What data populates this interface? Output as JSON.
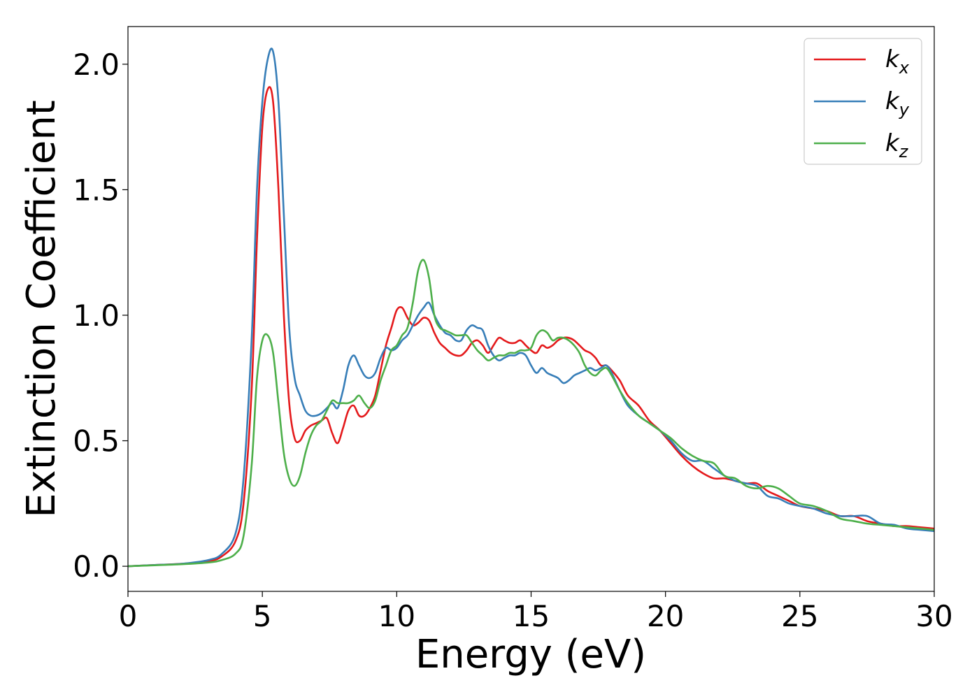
{
  "chart_data": {
    "type": "line",
    "xlabel": "Energy (eV)",
    "ylabel": "Extinction Coefficient",
    "xlim": [
      0,
      30
    ],
    "ylim": [
      -0.1,
      2.15
    ],
    "xticks": [
      0,
      5,
      10,
      15,
      20,
      25,
      30
    ],
    "xtick_labels": [
      "0",
      "5",
      "10",
      "15",
      "20",
      "25",
      "30"
    ],
    "yticks": [
      0.0,
      0.5,
      1.0,
      1.5,
      2.0
    ],
    "ytick_labels": [
      "0.0",
      "0.5",
      "1.0",
      "1.5",
      "2.0"
    ],
    "grid": false,
    "legend_position": "top-right",
    "series": [
      {
        "name": "k_x",
        "legend_main": "k",
        "legend_sub": "x",
        "color": "#e41a1c",
        "x": [
          0,
          1,
          2,
          3,
          3.5,
          4,
          4.3,
          4.6,
          4.8,
          5.0,
          5.2,
          5.4,
          5.6,
          5.8,
          6.0,
          6.2,
          6.4,
          6.6,
          6.8,
          7.0,
          7.2,
          7.4,
          7.6,
          7.8,
          8.0,
          8.2,
          8.4,
          8.6,
          8.8,
          9.0,
          9.2,
          9.4,
          9.6,
          9.8,
          10.0,
          10.2,
          10.4,
          10.6,
          10.8,
          11.0,
          11.2,
          11.4,
          11.6,
          11.8,
          12.0,
          12.2,
          12.4,
          12.6,
          12.8,
          13.0,
          13.2,
          13.4,
          13.6,
          13.8,
          14.0,
          14.2,
          14.4,
          14.6,
          14.8,
          15.0,
          15.2,
          15.4,
          15.6,
          15.8,
          16.0,
          16.2,
          16.4,
          16.6,
          16.8,
          17.0,
          17.2,
          17.4,
          17.6,
          17.8,
          18.0,
          18.3,
          18.6,
          19.0,
          19.4,
          19.8,
          20.2,
          20.6,
          21.0,
          21.4,
          21.8,
          22.2,
          22.6,
          23.0,
          23.4,
          23.8,
          24.2,
          24.6,
          25.0,
          25.5,
          26.0,
          26.5,
          27.0,
          27.5,
          28.0,
          28.5,
          29.0,
          29.5,
          30.0
        ],
        "y": [
          0.0,
          0.005,
          0.01,
          0.02,
          0.04,
          0.1,
          0.25,
          0.7,
          1.3,
          1.75,
          1.9,
          1.85,
          1.5,
          1.0,
          0.65,
          0.51,
          0.5,
          0.54,
          0.56,
          0.57,
          0.58,
          0.59,
          0.53,
          0.49,
          0.55,
          0.62,
          0.64,
          0.6,
          0.6,
          0.63,
          0.68,
          0.78,
          0.88,
          0.95,
          1.02,
          1.03,
          0.99,
          0.96,
          0.97,
          0.99,
          0.98,
          0.93,
          0.89,
          0.87,
          0.85,
          0.84,
          0.84,
          0.86,
          0.89,
          0.9,
          0.88,
          0.85,
          0.88,
          0.91,
          0.9,
          0.89,
          0.89,
          0.9,
          0.88,
          0.86,
          0.85,
          0.88,
          0.87,
          0.88,
          0.9,
          0.91,
          0.91,
          0.9,
          0.88,
          0.86,
          0.85,
          0.83,
          0.8,
          0.8,
          0.78,
          0.74,
          0.68,
          0.64,
          0.58,
          0.54,
          0.49,
          0.44,
          0.4,
          0.37,
          0.35,
          0.35,
          0.34,
          0.33,
          0.33,
          0.3,
          0.28,
          0.26,
          0.24,
          0.23,
          0.22,
          0.2,
          0.2,
          0.18,
          0.17,
          0.16,
          0.16,
          0.155,
          0.15
        ]
      },
      {
        "name": "k_y",
        "legend_main": "k",
        "legend_sub": "y",
        "color": "#377eb8",
        "x": [
          0,
          1,
          2,
          3,
          3.5,
          4,
          4.3,
          4.6,
          4.8,
          5.0,
          5.2,
          5.4,
          5.6,
          5.8,
          6.0,
          6.2,
          6.4,
          6.6,
          6.8,
          7.0,
          7.2,
          7.4,
          7.6,
          7.8,
          8.0,
          8.2,
          8.4,
          8.6,
          8.8,
          9.0,
          9.2,
          9.4,
          9.6,
          9.8,
          10.0,
          10.2,
          10.4,
          10.6,
          10.8,
          11.0,
          11.2,
          11.4,
          11.6,
          11.8,
          12.0,
          12.2,
          12.4,
          12.6,
          12.8,
          13.0,
          13.2,
          13.4,
          13.6,
          13.8,
          14.0,
          14.2,
          14.4,
          14.6,
          14.8,
          15.0,
          15.2,
          15.4,
          15.6,
          15.8,
          16.0,
          16.2,
          16.4,
          16.6,
          16.8,
          17.0,
          17.2,
          17.4,
          17.6,
          17.8,
          18.0,
          18.3,
          18.6,
          19.0,
          19.4,
          19.8,
          20.2,
          20.6,
          21.0,
          21.4,
          21.8,
          22.2,
          22.6,
          23.0,
          23.4,
          23.8,
          24.2,
          24.6,
          25.0,
          25.5,
          26.0,
          26.5,
          27.0,
          27.5,
          28.0,
          28.5,
          29.0,
          29.5,
          30.0
        ],
        "y": [
          0.0,
          0.005,
          0.01,
          0.025,
          0.05,
          0.13,
          0.35,
          0.9,
          1.5,
          1.85,
          2.02,
          2.05,
          1.85,
          1.4,
          0.95,
          0.75,
          0.68,
          0.62,
          0.6,
          0.6,
          0.61,
          0.63,
          0.65,
          0.63,
          0.7,
          0.8,
          0.84,
          0.8,
          0.76,
          0.75,
          0.77,
          0.83,
          0.87,
          0.86,
          0.87,
          0.9,
          0.92,
          0.96,
          1.0,
          1.03,
          1.05,
          1.0,
          0.96,
          0.93,
          0.92,
          0.9,
          0.9,
          0.94,
          0.96,
          0.95,
          0.94,
          0.88,
          0.84,
          0.82,
          0.83,
          0.84,
          0.84,
          0.85,
          0.84,
          0.8,
          0.77,
          0.79,
          0.77,
          0.76,
          0.75,
          0.73,
          0.74,
          0.76,
          0.77,
          0.78,
          0.79,
          0.78,
          0.79,
          0.8,
          0.77,
          0.7,
          0.64,
          0.6,
          0.57,
          0.54,
          0.5,
          0.45,
          0.42,
          0.42,
          0.39,
          0.36,
          0.34,
          0.33,
          0.32,
          0.28,
          0.27,
          0.25,
          0.24,
          0.23,
          0.21,
          0.2,
          0.2,
          0.2,
          0.17,
          0.165,
          0.15,
          0.145,
          0.14
        ]
      },
      {
        "name": "k_z",
        "legend_main": "k",
        "legend_sub": "z",
        "color": "#4daf4a",
        "x": [
          0,
          1,
          2,
          3,
          3.5,
          4,
          4.3,
          4.6,
          4.8,
          5.0,
          5.2,
          5.4,
          5.6,
          5.8,
          6.0,
          6.2,
          6.4,
          6.6,
          6.8,
          7.0,
          7.2,
          7.4,
          7.6,
          7.8,
          8.0,
          8.2,
          8.4,
          8.6,
          8.8,
          9.0,
          9.2,
          9.4,
          9.6,
          9.8,
          10.0,
          10.2,
          10.4,
          10.6,
          10.8,
          11.0,
          11.2,
          11.4,
          11.6,
          11.8,
          12.0,
          12.2,
          12.4,
          12.6,
          12.8,
          13.0,
          13.2,
          13.4,
          13.6,
          13.8,
          14.0,
          14.2,
          14.4,
          14.6,
          14.8,
          15.0,
          15.2,
          15.4,
          15.6,
          15.8,
          16.0,
          16.2,
          16.4,
          16.6,
          16.8,
          17.0,
          17.2,
          17.4,
          17.6,
          17.8,
          18.0,
          18.3,
          18.6,
          19.0,
          19.4,
          19.8,
          20.2,
          20.6,
          21.0,
          21.4,
          21.8,
          22.2,
          22.6,
          23.0,
          23.4,
          23.8,
          24.2,
          24.6,
          25.0,
          25.5,
          26.0,
          26.5,
          27.0,
          27.5,
          28.0,
          28.5,
          29.0,
          29.5,
          30.0
        ],
        "y": [
          0.0,
          0.004,
          0.008,
          0.015,
          0.025,
          0.05,
          0.12,
          0.4,
          0.75,
          0.9,
          0.92,
          0.85,
          0.65,
          0.45,
          0.35,
          0.32,
          0.36,
          0.45,
          0.52,
          0.56,
          0.58,
          0.62,
          0.66,
          0.65,
          0.65,
          0.65,
          0.66,
          0.68,
          0.65,
          0.63,
          0.66,
          0.74,
          0.8,
          0.86,
          0.88,
          0.92,
          0.95,
          1.05,
          1.18,
          1.22,
          1.15,
          1.0,
          0.95,
          0.94,
          0.93,
          0.92,
          0.92,
          0.92,
          0.89,
          0.86,
          0.84,
          0.82,
          0.83,
          0.84,
          0.84,
          0.85,
          0.85,
          0.86,
          0.86,
          0.87,
          0.92,
          0.94,
          0.93,
          0.9,
          0.91,
          0.91,
          0.9,
          0.88,
          0.85,
          0.8,
          0.77,
          0.76,
          0.78,
          0.79,
          0.76,
          0.7,
          0.65,
          0.6,
          0.57,
          0.54,
          0.51,
          0.47,
          0.44,
          0.42,
          0.41,
          0.36,
          0.35,
          0.32,
          0.31,
          0.32,
          0.31,
          0.28,
          0.25,
          0.24,
          0.22,
          0.19,
          0.18,
          0.17,
          0.165,
          0.16,
          0.155,
          0.15,
          0.145
        ]
      }
    ]
  }
}
